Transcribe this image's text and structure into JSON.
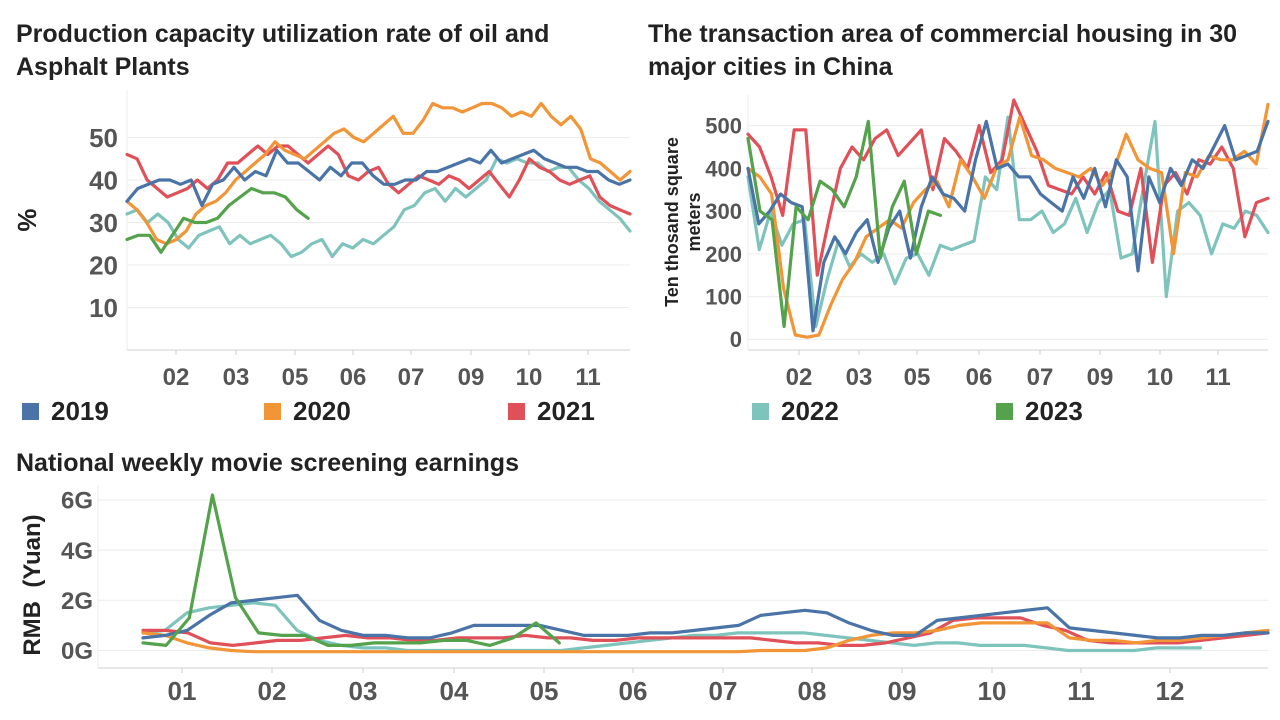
{
  "colors": {
    "2019": "#4a74a8",
    "2020": "#f29536",
    "2021": "#e05058",
    "2022": "#7ec4bd",
    "2023": "#54a24b",
    "grid": "#ececec",
    "axis": "#cfcfcf"
  },
  "legend": [
    {
      "label": "2019",
      "color": "#4a74a8"
    },
    {
      "label": "2020",
      "color": "#f29536"
    },
    {
      "label": "2021",
      "color": "#e05058"
    },
    {
      "label": "2022",
      "color": "#7ec4bd"
    },
    {
      "label": "2023",
      "color": "#54a24b"
    }
  ],
  "chart_data": [
    {
      "type": "line",
      "title": "Production capacity utilization rate of oil and Asphalt Plants",
      "ylabel": "%",
      "xlabel": "",
      "x_ticks": [
        "02",
        "03",
        "05",
        "06",
        "07",
        "09",
        "10",
        "11"
      ],
      "y_ticks": [
        10,
        20,
        30,
        40,
        50
      ],
      "ylim": [
        0,
        60
      ],
      "grid": true,
      "series": [
        {
          "name": "2019",
          "values": [
            35,
            38,
            39,
            40,
            40,
            39,
            40,
            34,
            39,
            40,
            43,
            40,
            42,
            41,
            47,
            44,
            44,
            42,
            40,
            43,
            41,
            44,
            44,
            41,
            39,
            39,
            40,
            40,
            42,
            42,
            43,
            44,
            45,
            44,
            47,
            44,
            45,
            46,
            47,
            45,
            44,
            43,
            43,
            42,
            42,
            40,
            39,
            40
          ]
        },
        {
          "name": "2020",
          "values": [
            35,
            33,
            30,
            26,
            25,
            26,
            28,
            32,
            34,
            35,
            37,
            40,
            42,
            44,
            46,
            49,
            47,
            46,
            45,
            47,
            49,
            51,
            52,
            50,
            49,
            51,
            53,
            55,
            51,
            51,
            54,
            58,
            57,
            57,
            56,
            57,
            58,
            58,
            57,
            55,
            56,
            55,
            58,
            55,
            53,
            55,
            52,
            45,
            44,
            42,
            40,
            42
          ]
        },
        {
          "name": "2021",
          "values": [
            46,
            45,
            40,
            38,
            36,
            37,
            38,
            40,
            38,
            40,
            44,
            44,
            46,
            48,
            46,
            48,
            48,
            46,
            44,
            46,
            48,
            46,
            41,
            40,
            42,
            43,
            39,
            37,
            39,
            41,
            40,
            39,
            41,
            40,
            38,
            40,
            42,
            39,
            36,
            40,
            45,
            43,
            42,
            40,
            39,
            40,
            41,
            36,
            34,
            33,
            32
          ]
        },
        {
          "name": "2022",
          "values": [
            32,
            33,
            30,
            32,
            30,
            26,
            24,
            27,
            28,
            29,
            25,
            27,
            25,
            26,
            27,
            25,
            22,
            23,
            25,
            26,
            22,
            25,
            24,
            26,
            25,
            27,
            29,
            33,
            34,
            37,
            38,
            35,
            38,
            36,
            38,
            40,
            45,
            44,
            45,
            44,
            44,
            42,
            43,
            43,
            40,
            38,
            35,
            33,
            31,
            28
          ]
        },
        {
          "name": "2023",
          "values": [
            26,
            27,
            27,
            23,
            27,
            31,
            30,
            30,
            31,
            34,
            36,
            38,
            37,
            37,
            36,
            33,
            31
          ]
        }
      ]
    },
    {
      "type": "line",
      "title": "The transaction area of commercial housing in 30 major cities in China",
      "ylabel": "Ten thosand square meters",
      "xlabel": "",
      "x_ticks": [
        "02",
        "03",
        "05",
        "06",
        "07",
        "09",
        "10",
        "11"
      ],
      "y_ticks": [
        0,
        100,
        200,
        300,
        400,
        500
      ],
      "ylim": [
        -25,
        560
      ],
      "grid": true,
      "series": [
        {
          "name": "2019",
          "values": [
            400,
            270,
            300,
            340,
            320,
            310,
            20,
            180,
            240,
            200,
            250,
            280,
            180,
            260,
            300,
            190,
            310,
            380,
            340,
            330,
            300,
            420,
            510,
            400,
            410,
            380,
            380,
            340,
            320,
            300,
            380,
            330,
            400,
            310,
            420,
            380,
            160,
            380,
            320,
            400,
            360,
            420,
            400,
            450,
            500,
            420,
            430,
            440,
            510
          ]
        },
        {
          "name": "2020",
          "values": [
            400,
            380,
            340,
            120,
            10,
            5,
            10,
            80,
            140,
            180,
            240,
            260,
            280,
            260,
            320,
            350,
            370,
            310,
            420,
            380,
            330,
            400,
            420,
            520,
            430,
            420,
            400,
            390,
            380,
            400,
            360,
            400,
            480,
            420,
            400,
            390,
            200,
            390,
            380,
            430,
            420,
            420,
            440,
            410,
            550
          ]
        },
        {
          "name": "2021",
          "values": [
            480,
            450,
            380,
            290,
            490,
            490,
            150,
            280,
            400,
            450,
            420,
            470,
            490,
            430,
            460,
            490,
            350,
            470,
            440,
            400,
            500,
            390,
            420,
            560,
            500,
            440,
            360,
            350,
            340,
            380,
            340,
            390,
            300,
            290,
            400,
            180,
            360,
            390,
            340,
            420,
            410,
            450,
            400,
            240,
            320,
            330
          ]
        },
        {
          "name": "2022",
          "values": [
            380,
            210,
            300,
            220,
            270,
            280,
            30,
            140,
            230,
            170,
            200,
            180,
            200,
            130,
            190,
            200,
            150,
            220,
            210,
            220,
            230,
            380,
            350,
            520,
            280,
            280,
            300,
            250,
            270,
            330,
            250,
            320,
            350,
            190,
            200,
            360,
            510,
            100,
            300,
            320,
            290,
            200,
            270,
            260,
            300,
            290,
            250
          ]
        },
        {
          "name": "2023",
          "values": [
            470,
            300,
            280,
            30,
            310,
            280,
            370,
            350,
            310,
            380,
            510,
            190,
            310,
            370,
            200,
            300,
            290
          ]
        }
      ]
    },
    {
      "type": "line",
      "title": "National weekly movie screening earnings",
      "ylabel": "RMB  (Yuan)",
      "xlabel": "",
      "x_ticks": [
        "01",
        "02",
        "03",
        "04",
        "05",
        "06",
        "07",
        "08",
        "09",
        "10",
        "11",
        "12"
      ],
      "y_ticks": [
        "0G",
        "2G",
        "4G",
        "6G"
      ],
      "ylim": [
        -0.7,
        6.4
      ],
      "grid": true,
      "series": [
        {
          "name": "2019",
          "values": [
            0.5,
            0.6,
            0.8,
            1.4,
            1.9,
            2.0,
            2.1,
            2.2,
            1.2,
            0.8,
            0.6,
            0.6,
            0.5,
            0.5,
            0.7,
            1.0,
            1.0,
            1.0,
            1.0,
            0.8,
            0.6,
            0.6,
            0.6,
            0.7,
            0.7,
            0.8,
            0.9,
            1.0,
            1.4,
            1.5,
            1.6,
            1.5,
            1.1,
            0.8,
            0.6,
            0.6,
            1.2,
            1.3,
            1.4,
            1.5,
            1.6,
            1.7,
            0.9,
            0.8,
            0.7,
            0.6,
            0.5,
            0.5,
            0.6,
            0.6,
            0.7,
            0.7
          ]
        },
        {
          "name": "2020",
          "values": [
            0.7,
            0.6,
            0.3,
            0.1,
            0.0,
            -0.05,
            -0.05,
            -0.05,
            -0.05,
            -0.05,
            -0.05,
            -0.05,
            -0.05,
            -0.05,
            -0.05,
            -0.05,
            -0.05,
            -0.05,
            -0.05,
            -0.05,
            -0.05,
            -0.05,
            -0.05,
            -0.05,
            -0.05,
            -0.05,
            -0.05,
            -0.05,
            0.0,
            0.0,
            0.0,
            0.1,
            0.4,
            0.6,
            0.7,
            0.7,
            0.8,
            1.0,
            1.1,
            1.1,
            1.1,
            1.1,
            0.5,
            0.4,
            0.4,
            0.3,
            0.4,
            0.4,
            0.5,
            0.6,
            0.7,
            0.8
          ]
        },
        {
          "name": "2021",
          "values": [
            0.8,
            0.8,
            0.7,
            0.3,
            0.2,
            0.3,
            0.4,
            0.4,
            0.5,
            0.6,
            0.5,
            0.5,
            0.4,
            0.4,
            0.5,
            0.5,
            0.5,
            0.6,
            0.5,
            0.5,
            0.4,
            0.4,
            0.5,
            0.5,
            0.5,
            0.5,
            0.5,
            0.5,
            0.4,
            0.3,
            0.3,
            0.2,
            0.2,
            0.3,
            0.5,
            0.7,
            1.2,
            1.3,
            1.3,
            1.3,
            1.0,
            0.8,
            0.4,
            0.3,
            0.3,
            0.3,
            0.3,
            0.4,
            0.5,
            0.6,
            0.7
          ]
        },
        {
          "name": "2022",
          "values": [
            0.7,
            0.8,
            1.5,
            1.7,
            1.8,
            1.9,
            1.8,
            0.8,
            0.4,
            0.2,
            0.1,
            0.1,
            0.0,
            0.0,
            0.0,
            0.0,
            0.0,
            0.0,
            0.0,
            0.0,
            0.1,
            0.2,
            0.3,
            0.4,
            0.5,
            0.6,
            0.6,
            0.7,
            0.7,
            0.7,
            0.7,
            0.6,
            0.5,
            0.4,
            0.3,
            0.2,
            0.3,
            0.3,
            0.2,
            0.2,
            0.2,
            0.1,
            0.0,
            0.0,
            0.0,
            0.0,
            0.1,
            0.1,
            0.1
          ]
        },
        {
          "name": "2023",
          "values": [
            0.3,
            0.2,
            1.3,
            6.2,
            2.1,
            0.7,
            0.6,
            0.6,
            0.2,
            0.2,
            0.3,
            0.3,
            0.3,
            0.4,
            0.4,
            0.2,
            0.5,
            1.1,
            0.3
          ]
        }
      ]
    }
  ]
}
